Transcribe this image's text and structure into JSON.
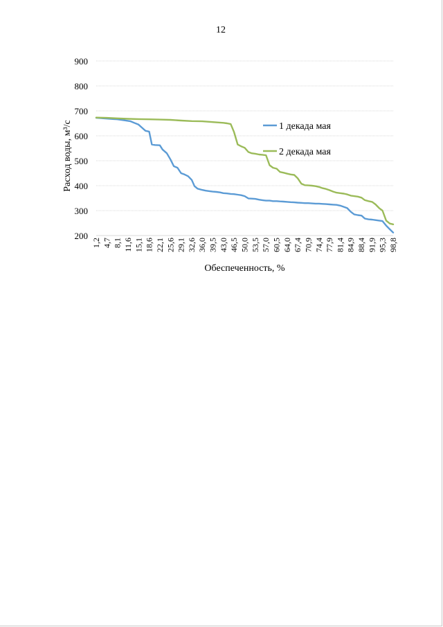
{
  "page": {
    "number": "12"
  },
  "chart_data": {
    "type": "line",
    "ylabel": "Расход воды, м³/с",
    "xlabel": "Обеспеченность, %",
    "ylim": [
      200,
      900
    ],
    "yticks": [
      200,
      300,
      400,
      500,
      600,
      700,
      800,
      900
    ],
    "grid": true,
    "legend_position": "right",
    "x_tick_labels": [
      "1,2",
      "4,7",
      "8,1",
      "11,6",
      "15,1",
      "18,6",
      "22,1",
      "25,6",
      "29,1",
      "32,6",
      "36,0",
      "39,5",
      "43,0",
      "46,5",
      "50,0",
      "53,5",
      "57,0",
      "60,5",
      "64,0",
      "67,4",
      "70,9",
      "74,4",
      "77,9",
      "81,4",
      "84,9",
      "88,4",
      "91,9",
      "95,3",
      "98,8"
    ],
    "series": [
      {
        "name": "1 декада мая",
        "color": "#5b9bd5",
        "x": [
          1.2,
          2.5,
          3.5,
          4.7,
          5.8,
          7.0,
          8.1,
          9.3,
          10.5,
          11.6,
          12.5,
          13.7,
          15.1,
          16.0,
          17.4,
          18.6,
          19.5,
          20.5,
          22.1,
          23.0,
          24.4,
          25.6,
          26.7,
          27.9,
          29.1,
          30.2,
          31.4,
          32.6,
          33.5,
          34.5,
          36.0,
          37.2,
          38.4,
          39.5,
          40.7,
          41.9,
          43.0,
          44.2,
          45.4,
          46.5,
          47.7,
          48.8,
          50.0,
          51.2,
          52.3,
          53.5,
          54.7,
          55.8,
          57.0,
          58.2,
          59.3,
          60.5,
          61.6,
          62.8,
          64.0,
          65.1,
          66.3,
          67.4,
          68.6,
          69.8,
          70.9,
          72.1,
          73.3,
          74.4,
          75.6,
          76.7,
          77.9,
          79.1,
          80.2,
          81.4,
          82.6,
          83.7,
          84.9,
          86.0,
          87.2,
          88.4,
          89.5,
          90.7,
          91.9,
          93.0,
          94.2,
          95.3,
          96.5,
          97.7,
          98.8
        ],
        "values": [
          672,
          671,
          670,
          669,
          668,
          667,
          666,
          664,
          662,
          660,
          658,
          652,
          645,
          635,
          620,
          617,
          565,
          563,
          562,
          545,
          530,
          505,
          478,
          472,
          450,
          445,
          438,
          423,
          398,
          388,
          383,
          380,
          378,
          376,
          375,
          373,
          370,
          369,
          367,
          366,
          364,
          362,
          358,
          349,
          348,
          347,
          344,
          342,
          340,
          340,
          338,
          338,
          337,
          336,
          335,
          334,
          333,
          332,
          331,
          330,
          330,
          329,
          328,
          328,
          327,
          326,
          325,
          324,
          323,
          320,
          315,
          310,
          295,
          285,
          282,
          280,
          268,
          265,
          264,
          262,
          260,
          258,
          240,
          225,
          212
        ]
      },
      {
        "name": "2 декада мая",
        "color": "#9bbb59",
        "x": [
          1.2,
          4.7,
          8.1,
          11.6,
          15.1,
          18.6,
          22.1,
          25.6,
          29.1,
          32.6,
          36.0,
          39.5,
          43.0,
          44.2,
          45.4,
          46.5,
          47.7,
          48.8,
          50.0,
          51.2,
          52.3,
          53.5,
          54.7,
          55.8,
          57.0,
          58.2,
          59.3,
          60.5,
          61.6,
          62.8,
          64.0,
          65.1,
          66.3,
          67.4,
          68.6,
          69.8,
          70.9,
          72.1,
          73.3,
          74.4,
          75.6,
          76.7,
          77.9,
          79.1,
          80.2,
          81.4,
          82.6,
          83.7,
          84.9,
          86.0,
          87.2,
          88.4,
          89.5,
          90.7,
          91.9,
          93.0,
          94.2,
          95.3,
          96.5,
          97.7,
          98.8
        ],
        "values": [
          673,
          672,
          670,
          668,
          667,
          666,
          665,
          664,
          661,
          659,
          658,
          655,
          652,
          650,
          647,
          615,
          565,
          558,
          552,
          535,
          530,
          528,
          525,
          524,
          522,
          482,
          472,
          468,
          455,
          452,
          448,
          445,
          443,
          430,
          408,
          402,
          401,
          400,
          398,
          395,
          390,
          387,
          382,
          376,
          372,
          370,
          368,
          365,
          360,
          358,
          356,
          352,
          342,
          338,
          335,
          325,
          310,
          300,
          260,
          248,
          245
        ]
      }
    ]
  }
}
